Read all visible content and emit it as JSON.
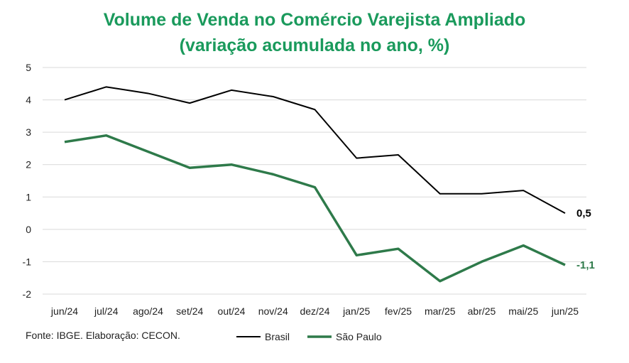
{
  "title_line1": "Volume de Venda no Comércio Varejista Ampliado",
  "title_line2": "(variação acumulada no ano, %)",
  "source": "Fonte: IBGE. Elaboração: CECON.",
  "colors": {
    "brasil": "#000000",
    "sao_paulo": "#2e7a4a",
    "title": "#1a9a5c",
    "grid": "#d9d9d9"
  },
  "chart_data": {
    "type": "line",
    "categories": [
      "jun/24",
      "jul/24",
      "ago/24",
      "set/24",
      "out/24",
      "nov/24",
      "dez/24",
      "jan/25",
      "fev/25",
      "mar/25",
      "abr/25",
      "mai/25",
      "jun/25"
    ],
    "series": [
      {
        "name": "Brasil",
        "values": [
          4.0,
          4.4,
          4.2,
          3.9,
          4.3,
          4.1,
          3.7,
          2.2,
          2.3,
          1.1,
          1.1,
          1.2,
          0.5
        ],
        "end_label": "0,5"
      },
      {
        "name": "São Paulo",
        "values": [
          2.7,
          2.9,
          2.4,
          1.9,
          2.0,
          1.7,
          1.3,
          -0.8,
          -0.6,
          -1.6,
          -1.0,
          -0.5,
          -1.1
        ],
        "end_label": "-1,1"
      }
    ],
    "yticks": [
      "5",
      "4",
      "3",
      "2",
      "1",
      "0",
      "-1",
      "-2"
    ],
    "ylim": [
      -2,
      5
    ],
    "grid": true,
    "legend": "bottom"
  }
}
